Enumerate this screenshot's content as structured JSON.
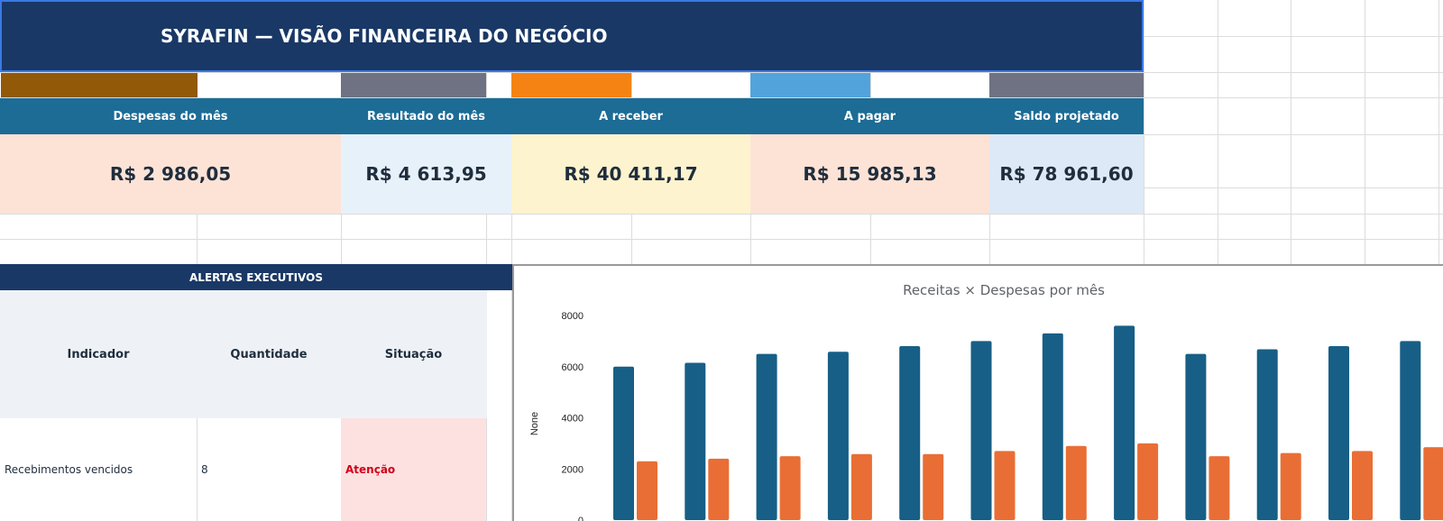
{
  "title": "SYRAFIN — VISÃO FINANCEIRA DO NEGÓCIO",
  "colors": {
    "title_bg": "#193866",
    "kpi_header_bg": "#1c6c96",
    "swatches": [
      "#915908",
      "#6f7282",
      "#f48314",
      "#52a3dc",
      "#6f7282"
    ],
    "kpi_value_bgs": [
      "#fde3d6",
      "#e7f1fa",
      "#fdf3ce",
      "#fde3d6",
      "#dde9f6"
    ],
    "bar_receitas": "#175f86",
    "bar_despesas": "#e96e35",
    "status_alert": "#d0021b"
  },
  "kpis": [
    {
      "label": "Despesas do mês",
      "value": "R$ 2 986,05"
    },
    {
      "label": "Resultado do mês",
      "value": "R$ 4 613,95"
    },
    {
      "label": "A receber",
      "value": "R$ 40 411,17"
    },
    {
      "label": "A pagar",
      "value": "R$ 15 985,13"
    },
    {
      "label": "Saldo projetado",
      "value": "R$ 78 961,60"
    }
  ],
  "alerts": {
    "title": "ALERTAS EXECUTIVOS",
    "columns": [
      "Indicador",
      "Quantidade",
      "Situação"
    ],
    "rows": [
      {
        "indicator": "Recebimentos vencidos",
        "quantity": "8",
        "status": "Atenção"
      }
    ]
  },
  "chart_data": {
    "type": "bar",
    "title": "Receitas × Despesas por mês",
    "ylabel": "None",
    "ylim": [
      0,
      8000
    ],
    "yticks": [
      0,
      2000,
      4000,
      6000,
      8000
    ],
    "grid": false,
    "series": [
      {
        "values": [
          6000,
          6150,
          6500,
          6580,
          6800,
          7000,
          7300,
          7600,
          6500,
          6680,
          6800,
          7000
        ]
      },
      {
        "values": [
          2300,
          2400,
          2500,
          2580,
          2580,
          2700,
          2900,
          3000,
          2500,
          2620,
          2700,
          2850
        ]
      }
    ]
  }
}
